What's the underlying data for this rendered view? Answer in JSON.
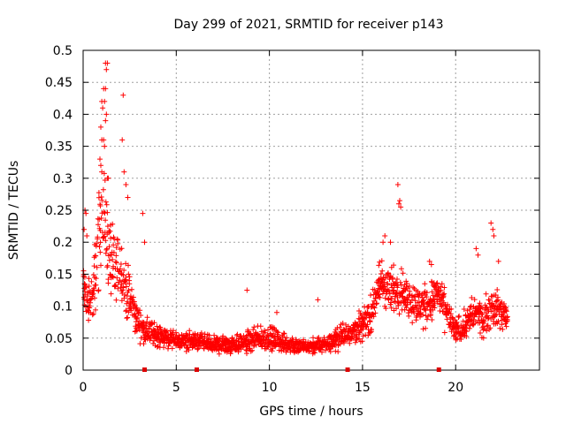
{
  "chart_data": {
    "type": "scatter",
    "title": "Day 299 of 2021, SRMTID for receiver p143",
    "xlabel": "GPS time / hours",
    "ylabel": "SRMTID / TECUs",
    "xlim": [
      0,
      24.5
    ],
    "ylim": [
      0,
      0.5
    ],
    "x_ticks": [
      0,
      5,
      10,
      15,
      20
    ],
    "x_tick_labels": [
      "0",
      "5",
      "10",
      "15",
      "20"
    ],
    "y_ticks": [
      0,
      0.05,
      0.1,
      0.15,
      0.2,
      0.25,
      0.3,
      0.35,
      0.4,
      0.45,
      0.5
    ],
    "y_tick_labels": [
      "0",
      "0.05",
      "0.1",
      "0.15",
      "0.2",
      "0.25",
      "0.3",
      "0.35",
      "0.4",
      "0.45",
      "0.5"
    ],
    "grid": true,
    "marker": "+",
    "color": "#ff0000",
    "gap_markers_x": [
      3.3,
      6.1,
      14.2,
      19.1
    ],
    "envelope_hours": [
      0,
      0.25,
      0.5,
      0.75,
      1.0,
      1.25,
      1.5,
      1.75,
      2.0,
      2.25,
      2.5,
      2.75,
      3.0,
      3.5,
      4.0,
      5,
      6,
      7,
      8,
      9,
      10,
      11,
      12,
      13,
      14,
      15,
      15.5,
      16,
      16.5,
      17,
      17.5,
      18,
      18.5,
      19,
      19.5,
      20,
      20.5,
      21,
      21.5,
      22,
      22.5,
      22.8
    ],
    "envelope_center": [
      0.14,
      0.1,
      0.11,
      0.18,
      0.25,
      0.22,
      0.16,
      0.15,
      0.16,
      0.13,
      0.11,
      0.09,
      0.07,
      0.06,
      0.055,
      0.045,
      0.045,
      0.04,
      0.04,
      0.045,
      0.05,
      0.04,
      0.035,
      0.04,
      0.055,
      0.07,
      0.09,
      0.14,
      0.12,
      0.13,
      0.11,
      0.1,
      0.1,
      0.12,
      0.09,
      0.06,
      0.07,
      0.09,
      0.08,
      0.1,
      0.09,
      0.08
    ],
    "envelope_spread": [
      0.05,
      0.04,
      0.05,
      0.08,
      0.09,
      0.08,
      0.06,
      0.06,
      0.06,
      0.05,
      0.04,
      0.03,
      0.025,
      0.02,
      0.02,
      0.015,
      0.015,
      0.015,
      0.015,
      0.02,
      0.02,
      0.015,
      0.012,
      0.015,
      0.02,
      0.025,
      0.03,
      0.045,
      0.04,
      0.04,
      0.035,
      0.035,
      0.035,
      0.035,
      0.03,
      0.02,
      0.025,
      0.03,
      0.03,
      0.035,
      0.03,
      0.025
    ],
    "extra_points": [
      [
        1.2,
        0.48
      ],
      [
        1.25,
        0.47
      ],
      [
        1.3,
        0.48
      ],
      [
        1.1,
        0.44
      ],
      [
        1.2,
        0.44
      ],
      [
        1.0,
        0.42
      ],
      [
        1.05,
        0.41
      ],
      [
        1.15,
        0.42
      ],
      [
        1.25,
        0.4
      ],
      [
        1.2,
        0.39
      ],
      [
        0.95,
        0.38
      ],
      [
        1.0,
        0.36
      ],
      [
        1.1,
        0.36
      ],
      [
        1.15,
        0.35
      ],
      [
        1.3,
        0.3
      ],
      [
        1.35,
        0.3
      ],
      [
        0.9,
        0.33
      ],
      [
        0.95,
        0.32
      ],
      [
        1.0,
        0.31
      ],
      [
        2.1,
        0.36
      ],
      [
        2.2,
        0.31
      ],
      [
        2.3,
        0.29
      ],
      [
        2.4,
        0.27
      ],
      [
        2.15,
        0.43
      ],
      [
        3.2,
        0.245
      ],
      [
        3.3,
        0.2
      ],
      [
        0.1,
        0.25
      ],
      [
        0.15,
        0.245
      ],
      [
        0.05,
        0.22
      ],
      [
        0.2,
        0.21
      ],
      [
        16.9,
        0.29
      ],
      [
        16.95,
        0.26
      ],
      [
        17.0,
        0.265
      ],
      [
        17.05,
        0.255
      ],
      [
        16.1,
        0.2
      ],
      [
        16.2,
        0.21
      ],
      [
        16.5,
        0.2
      ],
      [
        21.9,
        0.23
      ],
      [
        22.0,
        0.22
      ],
      [
        22.05,
        0.21
      ],
      [
        21.1,
        0.19
      ],
      [
        21.2,
        0.18
      ],
      [
        22.3,
        0.17
      ],
      [
        8.8,
        0.125
      ],
      [
        12.6,
        0.11
      ],
      [
        10.4,
        0.09
      ],
      [
        18.6,
        0.17
      ],
      [
        18.7,
        0.165
      ]
    ]
  }
}
